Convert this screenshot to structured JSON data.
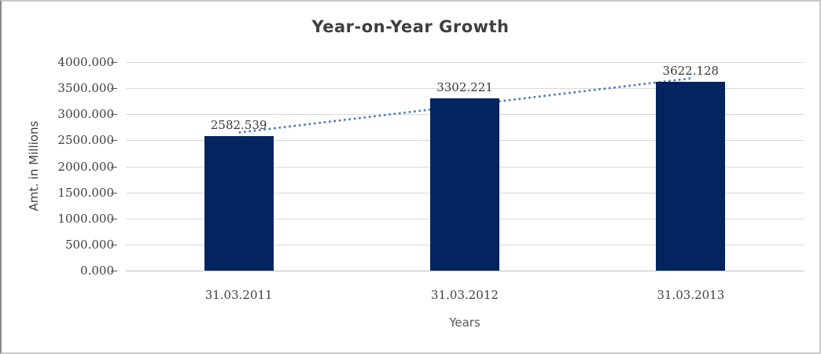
{
  "chart_data": {
    "type": "bar",
    "title": "Year-on-Year Growth",
    "xlabel": "Years",
    "ylabel": "Amt. in Millions",
    "categories": [
      "31.03.2011",
      "31.03.2012",
      "31.03.2013"
    ],
    "values": [
      2582.539,
      3302.221,
      3622.128
    ],
    "data_labels": [
      "2582.539",
      "3302.221",
      "3622.128"
    ],
    "ylim": [
      0,
      4000
    ],
    "ytick_step": 500,
    "ytick_labels": [
      "0.000",
      "500.000",
      "1000.000",
      "1500.000",
      "2000.000",
      "2500.000",
      "3000.000",
      "3500.000",
      "4000.000"
    ],
    "grid": true,
    "legend": "none",
    "trendline": {
      "type": "linear",
      "style": "dotted"
    },
    "colors": {
      "bar": "#03245e",
      "trendline": "#4679b8",
      "gridline": "#d9d9d9",
      "axis_line": "#bfbfbf",
      "tick_mark": "#595959",
      "title_text": "#3f3f3f",
      "axis_text": "#404040",
      "label_text": "#383838"
    }
  }
}
